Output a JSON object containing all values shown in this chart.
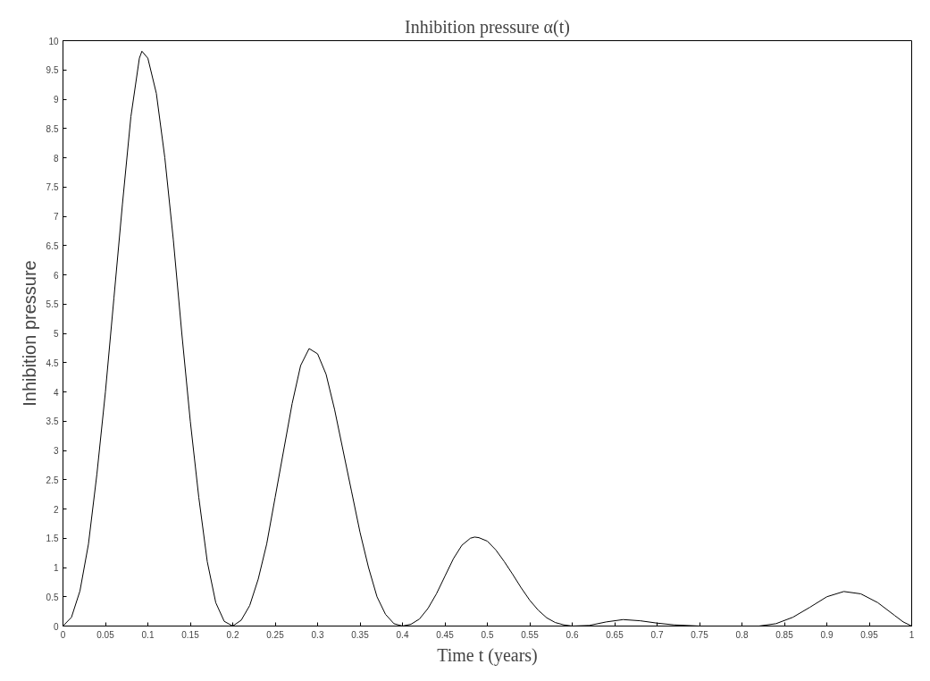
{
  "chart_data": {
    "type": "line",
    "title": "Inhibition pressure α(t)",
    "xlabel": "Time t (years)",
    "ylabel": "Inhibition pressure",
    "xlim": [
      0,
      1
    ],
    "ylim": [
      0,
      10
    ],
    "xticks": [
      0,
      0.05,
      0.1,
      0.15,
      0.2,
      0.25,
      0.3,
      0.35,
      0.4,
      0.45,
      0.5,
      0.55,
      0.6,
      0.65,
      0.7,
      0.75,
      0.8,
      0.85,
      0.9,
      0.95,
      1
    ],
    "yticks": [
      0,
      0.5,
      1,
      1.5,
      2,
      2.5,
      3,
      3.5,
      4,
      4.5,
      5,
      5.5,
      6,
      6.5,
      7,
      7.5,
      8,
      8.5,
      9,
      9.5,
      10
    ],
    "grid": false,
    "marker": "none",
    "line_style": "solid",
    "series": [
      {
        "color": "#000000",
        "x": [
          0,
          0.01,
          0.02,
          0.03,
          0.04,
          0.05,
          0.06,
          0.07,
          0.08,
          0.09,
          0.093,
          0.1,
          0.11,
          0.12,
          0.13,
          0.14,
          0.15,
          0.16,
          0.17,
          0.18,
          0.19,
          0.2,
          0.21,
          0.22,
          0.23,
          0.24,
          0.25,
          0.26,
          0.27,
          0.28,
          0.29,
          0.3,
          0.31,
          0.32,
          0.33,
          0.34,
          0.35,
          0.36,
          0.37,
          0.38,
          0.39,
          0.4,
          0.41,
          0.42,
          0.43,
          0.44,
          0.45,
          0.46,
          0.47,
          0.48,
          0.485,
          0.49,
          0.5,
          0.51,
          0.52,
          0.53,
          0.54,
          0.55,
          0.56,
          0.57,
          0.58,
          0.59,
          0.6,
          0.62,
          0.64,
          0.66,
          0.68,
          0.7,
          0.72,
          0.75,
          0.82,
          0.84,
          0.86,
          0.88,
          0.9,
          0.92,
          0.94,
          0.96,
          0.98,
          0.99,
          1
        ],
        "values": [
          0,
          0.15,
          0.6,
          1.4,
          2.6,
          4.0,
          5.6,
          7.2,
          8.7,
          9.7,
          9.82,
          9.7,
          9.1,
          8.0,
          6.6,
          5.0,
          3.5,
          2.2,
          1.1,
          0.4,
          0.08,
          0,
          0.1,
          0.35,
          0.8,
          1.4,
          2.2,
          3.0,
          3.8,
          4.45,
          4.74,
          4.65,
          4.3,
          3.7,
          3.0,
          2.3,
          1.6,
          1.0,
          0.5,
          0.2,
          0.04,
          0,
          0.03,
          0.12,
          0.3,
          0.55,
          0.85,
          1.15,
          1.38,
          1.5,
          1.52,
          1.51,
          1.45,
          1.3,
          1.1,
          0.88,
          0.65,
          0.44,
          0.27,
          0.14,
          0.06,
          0.02,
          0,
          0.01,
          0.07,
          0.11,
          0.09,
          0.05,
          0.02,
          0,
          0,
          0.04,
          0.15,
          0.32,
          0.5,
          0.59,
          0.55,
          0.4,
          0.18,
          0.07,
          0
        ]
      }
    ]
  }
}
